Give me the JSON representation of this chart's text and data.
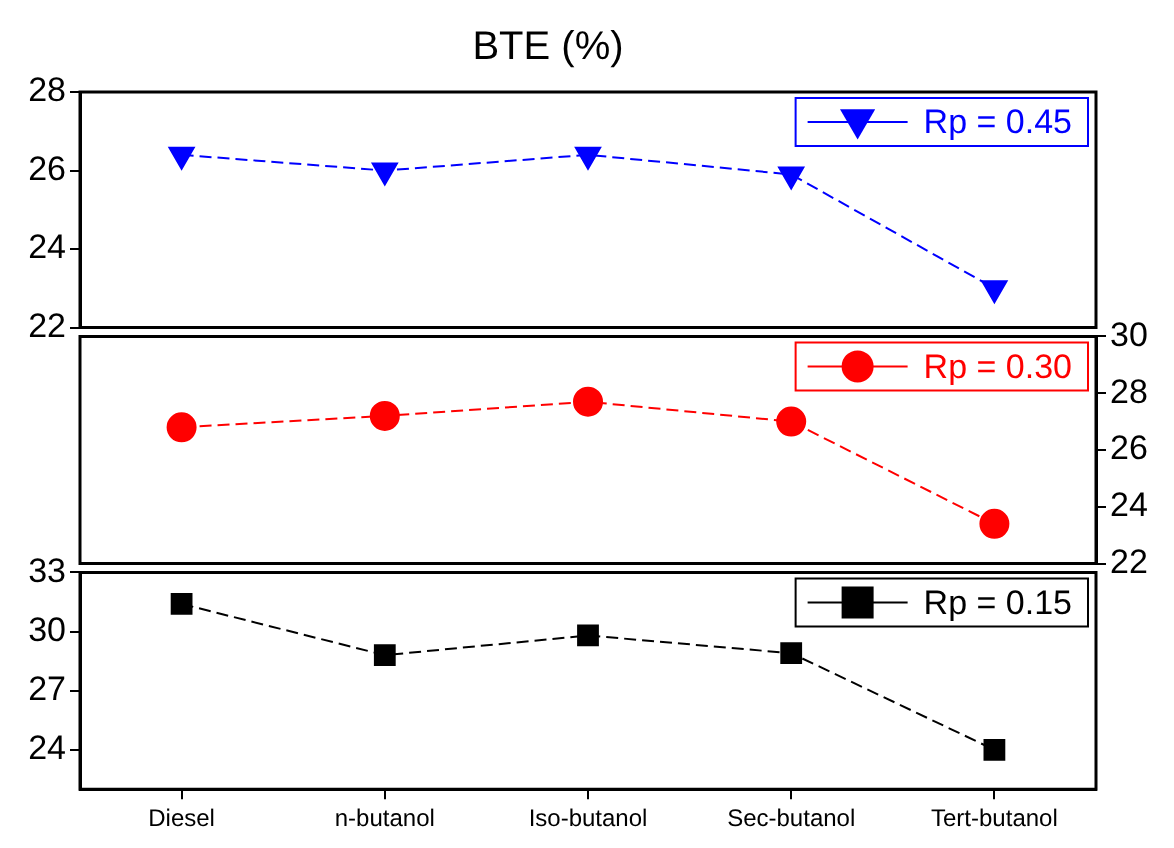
{
  "chart_data": [
    {
      "type": "line",
      "title": "BTE (%)",
      "categories": [
        null,
        null,
        null,
        null,
        null
      ],
      "series": [
        {
          "name": "Rp = 0.45",
          "color": "#0000ff",
          "values": [
            26.4,
            26.0,
            26.4,
            25.9,
            23.0
          ]
        }
      ],
      "ylim": [
        22,
        28
      ],
      "yticks": [
        22,
        24,
        26,
        28
      ],
      "tick_labels": "y",
      "marker": "triangle",
      "line_style": "dashed",
      "legend": "top right",
      "grid": false
    },
    {
      "type": "line",
      "categories": [
        null,
        null,
        null,
        null,
        null
      ],
      "series": [
        {
          "name": "Rp = 0.30",
          "color": "#ff0000",
          "values": [
            26.8,
            27.2,
            27.7,
            27.0,
            23.4
          ]
        }
      ],
      "ylim": [
        22,
        30
      ],
      "yticks": [
        22,
        24,
        26,
        28,
        30
      ],
      "tick_labels": "y",
      "marker": "circle",
      "line_style": "dashed",
      "legend": "top right",
      "grid": false
    },
    {
      "type": "line",
      "categories": [
        "Diesel",
        "n-butanol",
        "Iso-butanol",
        "Sec-butanol",
        "Tert-butanol"
      ],
      "series": [
        {
          "name": "Rp = 0.15",
          "color": "#000000",
          "values": [
            31.4,
            28.8,
            29.8,
            28.9,
            24.0
          ]
        }
      ],
      "ylim": [
        22,
        33
      ],
      "yticks": [
        24,
        27,
        30,
        33
      ],
      "marker": "square",
      "line_style": "dashed",
      "legend": "top right",
      "grid": false
    }
  ]
}
